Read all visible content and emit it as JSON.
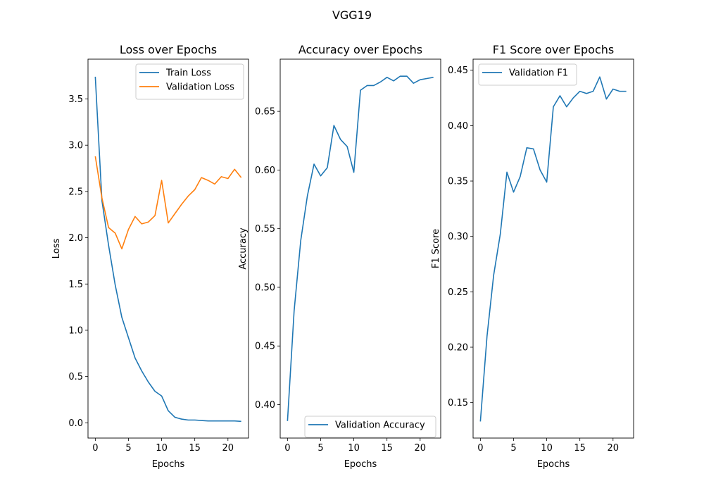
{
  "figure": {
    "suptitle": "VGG19"
  },
  "colors": {
    "series1": "#1f77b4",
    "series2": "#ff7f0e"
  },
  "chart_data": [
    {
      "type": "line",
      "title": "Loss over Epochs",
      "xlabel": "Epochs",
      "ylabel": "Loss",
      "xlim": [
        -1.1,
        23.1
      ],
      "ylim": [
        -0.165,
        3.93
      ],
      "xticks": [
        0,
        5,
        10,
        15,
        20
      ],
      "yticks": [
        0.0,
        0.5,
        1.0,
        1.5,
        2.0,
        2.5,
        3.0,
        3.5
      ],
      "ytick_decimals": 1,
      "grid": false,
      "legend": "upper right",
      "x": [
        0,
        1,
        2,
        3,
        4,
        5,
        6,
        7,
        8,
        9,
        10,
        11,
        12,
        13,
        14,
        15,
        16,
        17,
        18,
        19,
        20,
        21,
        22
      ],
      "series": [
        {
          "name": "Train Loss",
          "color": "#1f77b4",
          "values": [
            3.74,
            2.4,
            1.92,
            1.49,
            1.14,
            0.92,
            0.7,
            0.56,
            0.44,
            0.34,
            0.29,
            0.13,
            0.06,
            0.04,
            0.03,
            0.03,
            0.025,
            0.02,
            0.02,
            0.02,
            0.02,
            0.02,
            0.015
          ]
        },
        {
          "name": "Validation Loss",
          "color": "#ff7f0e",
          "values": [
            2.88,
            2.43,
            2.11,
            2.05,
            1.88,
            2.09,
            2.23,
            2.15,
            2.17,
            2.24,
            2.62,
            2.16,
            2.26,
            2.36,
            2.45,
            2.52,
            2.65,
            2.62,
            2.58,
            2.66,
            2.64,
            2.74,
            2.65
          ]
        }
      ]
    },
    {
      "type": "line",
      "title": "Accuracy over Epochs",
      "xlabel": "Epochs",
      "ylabel": "Accuracy",
      "xlim": [
        -1.1,
        23.1
      ],
      "ylim": [
        0.3715,
        0.6945
      ],
      "xticks": [
        0,
        5,
        10,
        15,
        20
      ],
      "yticks": [
        0.4,
        0.45,
        0.5,
        0.55,
        0.6,
        0.65
      ],
      "ytick_decimals": 2,
      "grid": false,
      "legend": "lower right",
      "x": [
        0,
        1,
        2,
        3,
        4,
        5,
        6,
        7,
        8,
        9,
        10,
        11,
        12,
        13,
        14,
        15,
        16,
        17,
        18,
        19,
        20,
        21,
        22
      ],
      "series": [
        {
          "name": "Validation Accuracy",
          "color": "#1f77b4",
          "values": [
            0.386,
            0.48,
            0.54,
            0.578,
            0.605,
            0.595,
            0.602,
            0.638,
            0.626,
            0.62,
            0.598,
            0.668,
            0.672,
            0.672,
            0.675,
            0.679,
            0.676,
            0.68,
            0.68,
            0.674,
            0.677,
            0.678,
            0.679
          ]
        }
      ]
    },
    {
      "type": "line",
      "title": "F1 Score over Epochs",
      "xlabel": "Epochs",
      "ylabel": "F1 Score",
      "xlim": [
        -1.1,
        23.1
      ],
      "ylim": [
        0.118,
        0.46
      ],
      "xticks": [
        0,
        5,
        10,
        15,
        20
      ],
      "yticks": [
        0.15,
        0.2,
        0.25,
        0.3,
        0.35,
        0.4,
        0.45
      ],
      "ytick_decimals": 2,
      "grid": false,
      "legend": "upper left",
      "x": [
        0,
        1,
        2,
        3,
        4,
        5,
        6,
        7,
        8,
        9,
        10,
        11,
        12,
        13,
        14,
        15,
        16,
        17,
        18,
        19,
        20,
        21,
        22
      ],
      "series": [
        {
          "name": "Validation F1",
          "color": "#1f77b4",
          "values": [
            0.133,
            0.21,
            0.265,
            0.302,
            0.358,
            0.34,
            0.354,
            0.38,
            0.379,
            0.36,
            0.349,
            0.417,
            0.427,
            0.417,
            0.425,
            0.431,
            0.429,
            0.431,
            0.444,
            0.424,
            0.433,
            0.431,
            0.431
          ]
        }
      ]
    }
  ]
}
